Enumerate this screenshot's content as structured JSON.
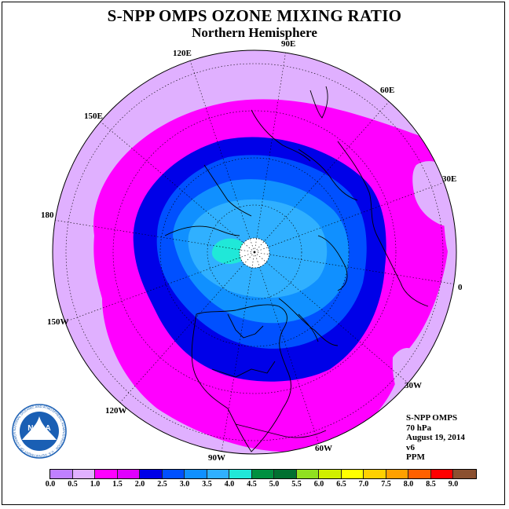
{
  "title": "S-NPP OMPS OZONE MIXING RATIO",
  "subtitle": "Northern Hemisphere",
  "longitude_labels": [
    {
      "id": "lon-90e",
      "text": "90E"
    },
    {
      "id": "lon-60e",
      "text": "60E"
    },
    {
      "id": "lon-30e",
      "text": "30E"
    },
    {
      "id": "lon-0",
      "text": "0"
    },
    {
      "id": "lon-30w",
      "text": "30W"
    },
    {
      "id": "lon-60w",
      "text": "60W"
    },
    {
      "id": "lon-90w",
      "text": "90W"
    },
    {
      "id": "lon-120w",
      "text": "120W"
    },
    {
      "id": "lon-150w",
      "text": "150W"
    },
    {
      "id": "lon-180",
      "text": "180"
    },
    {
      "id": "lon-150e",
      "text": "150E"
    },
    {
      "id": "lon-120e",
      "text": "120E"
    }
  ],
  "info": {
    "instrument": "S-NPP OMPS",
    "level": "70 hPa",
    "date": "August 19, 2014",
    "version": "v6",
    "units": "PPM"
  },
  "colorbar": {
    "colors": [
      "#c080ff",
      "#e0b0ff",
      "#ff00ff",
      "#e000ff",
      "#0000e8",
      "#0050ff",
      "#1090ff",
      "#30b0ff",
      "#20e8d8",
      "#009040",
      "#007030",
      "#90e020",
      "#d0f000",
      "#ffff00",
      "#ffd000",
      "#ffa000",
      "#ff6000",
      "#ff0000",
      "#8b5030"
    ],
    "ticks": [
      "0.0",
      "0.5",
      "1.0",
      "1.5",
      "2.0",
      "2.5",
      "3.0",
      "3.5",
      "4.0",
      "4.5",
      "5.0",
      "5.5",
      "6.0",
      "6.5",
      "7.0",
      "7.5",
      "8.0",
      "8.5",
      "9.0"
    ]
  },
  "logo": {
    "text": "NOAA",
    "ring_text": "NATIONAL OCEANIC AND ATMOSPHERIC ADMINISTRATION · U.S. DEPARTMENT OF COMMERCE"
  }
}
